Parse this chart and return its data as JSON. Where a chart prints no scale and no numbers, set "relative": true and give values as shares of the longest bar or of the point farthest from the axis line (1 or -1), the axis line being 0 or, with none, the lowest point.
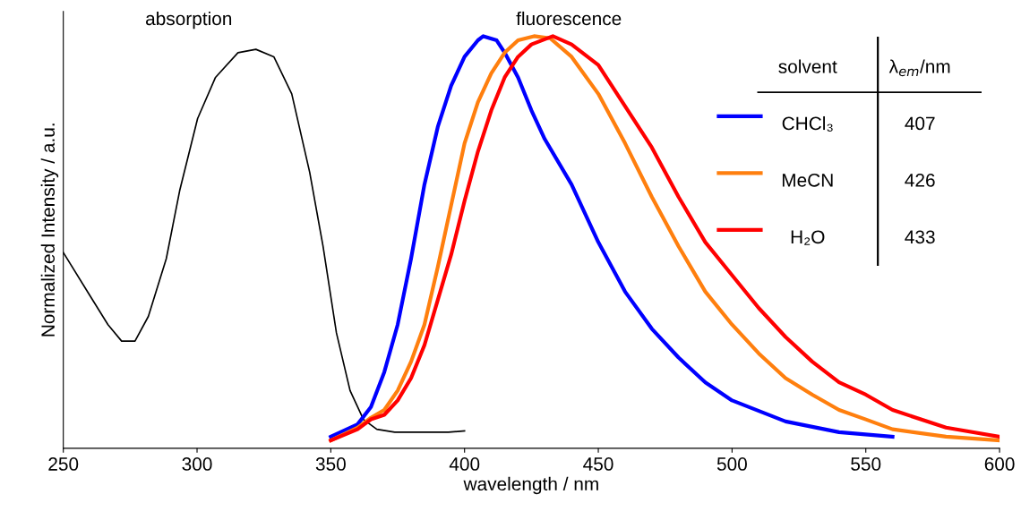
{
  "chart_data": {
    "type": "line",
    "relative": true,
    "xlabel": "wavelength / nm",
    "ylabel": "Normalized Intensity / a.u.",
    "xlim": [
      250,
      600
    ],
    "xticks": [
      250,
      300,
      350,
      400,
      450,
      500,
      550,
      600
    ],
    "grid": false,
    "marker": "none",
    "line_style": "solid",
    "legend": "right",
    "legend_title": "solvent",
    "annotations": [
      "absorption",
      "fluorescence",
      "λ$_{em}$/nm",
      "407",
      "426",
      "433"
    ],
    "series": [
      {
        "color": "#000000",
        "x": [
          250,
          260,
          266.7,
          271.8,
          276.8,
          281.8,
          288.5,
          293.5,
          300.2,
          306.9,
          315.3,
          322,
          328.7,
          335.4,
          342.1,
          347.1,
          352.1,
          357.2,
          362.2,
          367.2,
          373.9,
          384,
          394,
          400
        ],
        "values": [
          0.475,
          0.37,
          0.3,
          0.26,
          0.26,
          0.32,
          0.46,
          0.625,
          0.8,
          0.9,
          0.96,
          0.968,
          0.95,
          0.86,
          0.67,
          0.49,
          0.28,
          0.14,
          0.07,
          0.046,
          0.039,
          0.039,
          0.039,
          0.042
        ]
      },
      {
        "name": "CHCl₃",
        "color": "#0000ff",
        "x": [
          350,
          360,
          365,
          370,
          375,
          380,
          385,
          390,
          395,
          400,
          405,
          407,
          412,
          415,
          420,
          425,
          430,
          440,
          450,
          460,
          470,
          480,
          490,
          500,
          520,
          540,
          560
        ],
        "values": [
          0.028,
          0.058,
          0.1,
          0.185,
          0.3,
          0.46,
          0.64,
          0.78,
          0.88,
          0.95,
          0.99,
          1.0,
          0.99,
          0.96,
          0.9,
          0.82,
          0.75,
          0.64,
          0.5,
          0.38,
          0.29,
          0.22,
          0.16,
          0.116,
          0.065,
          0.039,
          0.028
        ]
      },
      {
        "name": "MeCN",
        "color": "#ff7f0e",
        "x": [
          350,
          360,
          365,
          370,
          375,
          380,
          385,
          390,
          395,
          400,
          405,
          410,
          415,
          420,
          426,
          432,
          440,
          450,
          460,
          470,
          480,
          490,
          500,
          510,
          520,
          530,
          540,
          550,
          560,
          580,
          600
        ],
        "values": [
          0.019,
          0.05,
          0.074,
          0.093,
          0.14,
          0.21,
          0.3,
          0.44,
          0.59,
          0.74,
          0.84,
          0.91,
          0.96,
          0.99,
          1.0,
          0.995,
          0.95,
          0.86,
          0.74,
          0.61,
          0.49,
          0.38,
          0.3,
          0.23,
          0.17,
          0.13,
          0.093,
          0.07,
          0.046,
          0.028,
          0.019
        ]
      },
      {
        "name": "H₂O",
        "color": "#ff0000",
        "x": [
          350,
          360,
          365,
          370,
          375,
          380,
          385,
          390,
          395,
          400,
          405,
          410,
          415,
          420,
          425,
          433,
          440,
          450,
          460,
          470,
          480,
          490,
          500,
          510,
          520,
          530,
          540,
          550,
          560,
          580,
          600
        ],
        "values": [
          0.019,
          0.046,
          0.07,
          0.081,
          0.116,
          0.17,
          0.25,
          0.36,
          0.47,
          0.6,
          0.72,
          0.82,
          0.9,
          0.95,
          0.98,
          1.0,
          0.98,
          0.93,
          0.83,
          0.73,
          0.61,
          0.5,
          0.42,
          0.34,
          0.27,
          0.21,
          0.16,
          0.13,
          0.093,
          0.05,
          0.028
        ]
      }
    ]
  }
}
